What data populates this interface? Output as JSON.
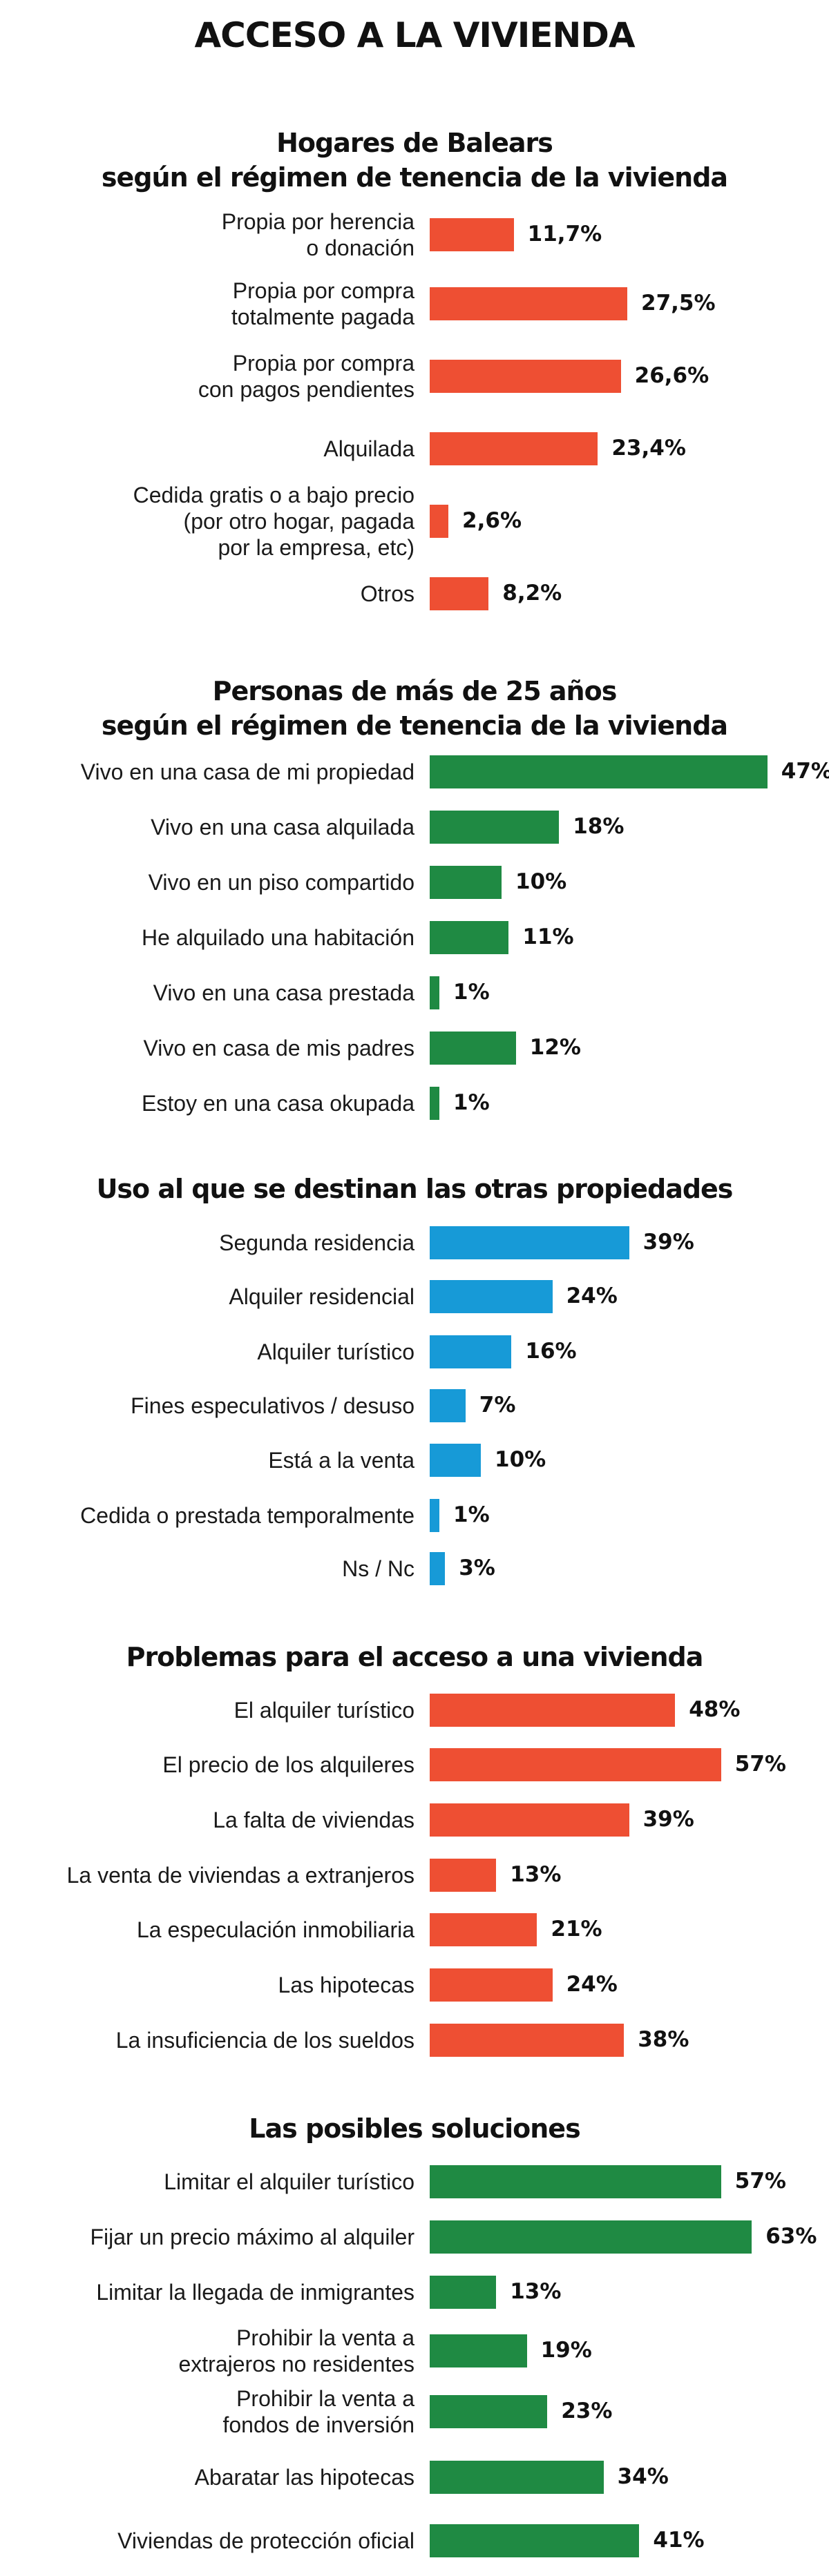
{
  "title": "ACCESO A LA VIVIENDA",
  "colors": {
    "orange": "#ee4f33",
    "green": "#1f8a43",
    "blue": "#179ad7"
  },
  "chart_data": [
    {
      "type": "bar",
      "title": "Hogares de Balears\nsegún el régimen de tenencia de la vivienda",
      "color": "#ee4f33",
      "categories": [
        "Propia por herencia\no donación",
        "Propia por compra\ntotalmente pagada",
        "Propia por compra\ncon pagos pendientes",
        "Alquilada",
        "Cedida gratis o a bajo precio\n(por otro hogar, pagada\npor la empresa, etc)",
        "Otros"
      ],
      "values": [
        11.7,
        27.5,
        26.6,
        23.4,
        2.6,
        8.2
      ],
      "labels": [
        "11,7%",
        "27,5%",
        "26,6%",
        "23,4%",
        "2,6%",
        "8,2%"
      ]
    },
    {
      "type": "bar",
      "title": "Personas de más de 25 años\nsegún el régimen de tenencia de la vivienda",
      "color": "#1f8a43",
      "categories": [
        "Vivo en una casa de mi propiedad",
        "Vivo en una casa alquilada",
        "Vivo en un piso compartido",
        "He alquilado una habitación",
        "Vivo en una casa prestada",
        "Vivo en casa de mis padres",
        "Estoy en una casa okupada"
      ],
      "values": [
        47,
        18,
        10,
        11,
        1,
        12,
        1
      ],
      "labels": [
        "47%",
        "18%",
        "10%",
        "11%",
        "1%",
        "12%",
        "1%"
      ]
    },
    {
      "type": "bar",
      "title": "Uso al que se destinan las otras propiedades",
      "color": "#179ad7",
      "categories": [
        "Segunda residencia",
        "Alquiler residencial",
        "Alquiler turístico",
        "Fines especulativos / desuso",
        "Está a la venta",
        "Cedida o prestada temporalmente",
        "Ns / Nc"
      ],
      "values": [
        39,
        24,
        16,
        7,
        10,
        1,
        3
      ],
      "labels": [
        "39%",
        "24%",
        "16%",
        "7%",
        "10%",
        "1%",
        "3%"
      ]
    },
    {
      "type": "bar",
      "title": "Problemas para el acceso a una vivienda",
      "color": "#ee4f33",
      "categories": [
        "El alquiler turístico",
        "El precio de los alquileres",
        "La falta de viviendas",
        "La venta de viviendas a extranjeros",
        "La especulación inmobiliaria",
        "Las hipotecas",
        "La insuficiencia de los sueldos"
      ],
      "values": [
        48,
        57,
        39,
        13,
        21,
        24,
        38
      ],
      "labels": [
        "48%",
        "57%",
        "39%",
        "13%",
        "21%",
        "24%",
        "38%"
      ]
    },
    {
      "type": "bar",
      "title": "Las posibles soluciones",
      "color": "#1f8a43",
      "categories": [
        "Limitar el alquiler turístico",
        "Fijar un precio máximo al alquiler",
        "Limitar la llegada de inmigrantes",
        "Prohibir la venta a\nextrajeros no residentes",
        "Prohibir la venta a\nfondos de inversión",
        "Abaratar las hipotecas",
        "Viviendas de protección oficial"
      ],
      "values": [
        57,
        63,
        13,
        19,
        23,
        34,
        41
      ],
      "labels": [
        "57%",
        "63%",
        "13%",
        "19%",
        "23%",
        "34%",
        "41%"
      ]
    }
  ]
}
